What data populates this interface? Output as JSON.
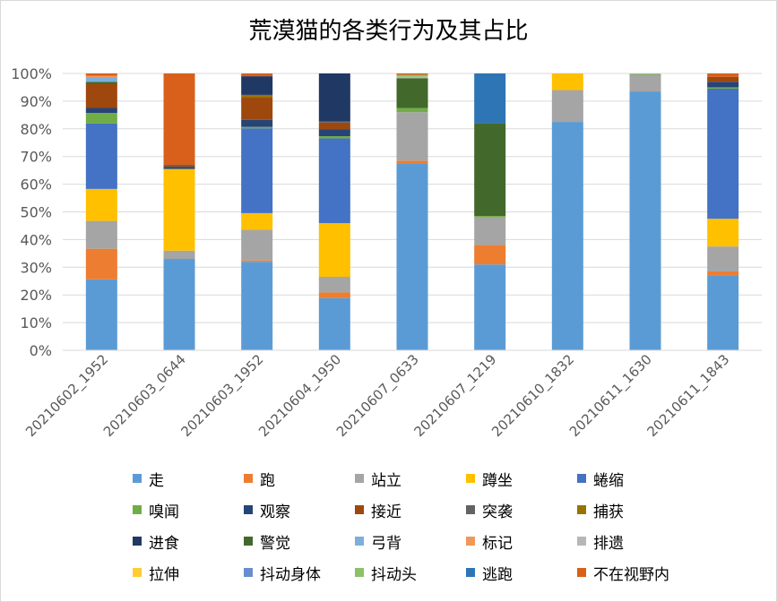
{
  "chart_data": {
    "type": "bar",
    "stacked": true,
    "normalized": true,
    "title": "荒漠猫的各类行为及其占比",
    "xlabel": "",
    "ylabel": "",
    "ylim": [
      0,
      100
    ],
    "y_ticks": [
      "0%",
      "10%",
      "20%",
      "30%",
      "40%",
      "50%",
      "60%",
      "70%",
      "80%",
      "90%",
      "100%"
    ],
    "grid": true,
    "legend_position": "bottom",
    "categories": [
      "20210602_1952",
      "20210603_0644",
      "20210603_1952",
      "20210604_1950",
      "20210607_0633",
      "20210607_1219",
      "20210610_1832",
      "20210611_1630",
      "20210611_1843"
    ],
    "series": [
      {
        "name": "走",
        "color": "#5B9BD5",
        "values": [
          25.5,
          33.0,
          31.8,
          18.5,
          67.5,
          31.0,
          82.5,
          93.5,
          27.0
        ]
      },
      {
        "name": "跑",
        "color": "#ED7D31",
        "values": [
          11.0,
          0.0,
          0.5,
          2.0,
          1.0,
          7.0,
          0.0,
          0.0,
          1.5
        ]
      },
      {
        "name": "站立",
        "color": "#A5A5A5",
        "values": [
          10.0,
          3.0,
          11.0,
          5.5,
          17.5,
          10.0,
          11.5,
          6.0,
          9.0
        ]
      },
      {
        "name": "蹲坐",
        "color": "#FFC000",
        "values": [
          11.5,
          29.5,
          6.0,
          19.0,
          0.0,
          0.0,
          6.0,
          0.0,
          10.0
        ]
      },
      {
        "name": "蜷缩",
        "color": "#4472C4",
        "values": [
          23.5,
          0.0,
          30.5,
          30.0,
          0.0,
          0.0,
          0.0,
          0.0,
          47.0
        ]
      },
      {
        "name": "嗅闻",
        "color": "#70AD47",
        "values": [
          3.8,
          0.0,
          0.5,
          0.8,
          1.5,
          0.5,
          0.0,
          0.3,
          0.5
        ]
      },
      {
        "name": "观察",
        "color": "#264478",
        "values": [
          1.8,
          0.7,
          2.5,
          2.5,
          0.0,
          0.0,
          0.0,
          0.0,
          2.0
        ]
      },
      {
        "name": "接近",
        "color": "#9E480E",
        "values": [
          8.7,
          0.3,
          8.0,
          2.3,
          0.0,
          0.0,
          0.0,
          0.0,
          1.8
        ]
      },
      {
        "name": "突袭",
        "color": "#636363",
        "values": [
          0.0,
          0.5,
          0.0,
          0.4,
          0.0,
          0.0,
          0.0,
          0.0,
          0.0
        ]
      },
      {
        "name": "捕获",
        "color": "#997300",
        "values": [
          0.0,
          0.0,
          1.0,
          0.0,
          0.0,
          0.0,
          0.0,
          0.0,
          0.0
        ]
      },
      {
        "name": "进食",
        "color": "#203864",
        "values": [
          0.0,
          0.0,
          6.7,
          17.0,
          0.0,
          0.0,
          0.0,
          0.0,
          0.0
        ]
      },
      {
        "name": "警觉",
        "color": "#43682B",
        "values": [
          0.7,
          0.0,
          0.0,
          0.0,
          10.8,
          33.5,
          0.0,
          0.0,
          0.0
        ]
      },
      {
        "name": "弓背",
        "color": "#7CAFDD",
        "values": [
          1.7,
          0.0,
          0.0,
          0.0,
          0.0,
          0.0,
          0.0,
          0.0,
          0.0
        ]
      },
      {
        "name": "标记",
        "color": "#F1975A",
        "values": [
          0.5,
          0.0,
          0.0,
          0.0,
          0.0,
          0.0,
          0.0,
          0.0,
          0.0
        ]
      },
      {
        "name": "排遗",
        "color": "#B7B7B7",
        "values": [
          0.0,
          0.0,
          0.0,
          0.0,
          0.5,
          0.0,
          0.0,
          0.2,
          0.0
        ]
      },
      {
        "name": "拉伸",
        "color": "#FFCD33",
        "values": [
          0.0,
          0.0,
          0.0,
          0.0,
          0.0,
          0.0,
          0.0,
          0.0,
          0.0
        ]
      },
      {
        "name": "抖动身体",
        "color": "#698ED0",
        "values": [
          0.0,
          0.0,
          0.0,
          0.0,
          0.0,
          0.0,
          0.0,
          0.0,
          0.0
        ]
      },
      {
        "name": "抖动头",
        "color": "#8CC168",
        "values": [
          0.0,
          0.0,
          0.0,
          0.0,
          0.7,
          0.0,
          0.0,
          0.0,
          0.0
        ]
      },
      {
        "name": "逃跑",
        "color": "#2E75B6",
        "values": [
          0.0,
          0.0,
          0.0,
          0.0,
          0.0,
          18.0,
          0.0,
          0.0,
          0.0
        ]
      },
      {
        "name": "不在视野内",
        "color": "#D8601A",
        "values": [
          0.8,
          33.0,
          1.0,
          0.0,
          0.5,
          0.0,
          0.0,
          0.0,
          1.2
        ]
      }
    ]
  }
}
